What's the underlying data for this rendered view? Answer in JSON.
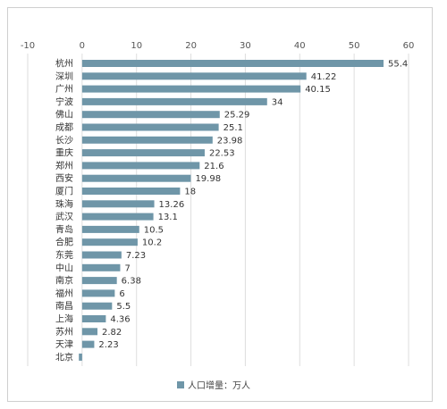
{
  "chart_data": {
    "type": "bar",
    "orientation": "horizontal",
    "title": "",
    "xlabel": "",
    "ylabel": "",
    "xlim": [
      -10,
      60
    ],
    "x_ticks": [
      -10,
      0,
      10,
      20,
      30,
      40,
      50,
      60
    ],
    "x_tick_labels": [
      "-10",
      "0",
      "10",
      "20",
      "30",
      "40",
      "50",
      "60"
    ],
    "axis_position": "top",
    "grid": true,
    "legend_position": "bottom",
    "color": "#6f96a8",
    "categories": [
      "杭州",
      "深圳",
      "广州",
      "宁波",
      "佛山",
      "成都",
      "长沙",
      "重庆",
      "郑州",
      "西安",
      "厦门",
      "珠海",
      "武汉",
      "青岛",
      "合肥",
      "东莞",
      "中山",
      "南京",
      "福州",
      "南昌",
      "上海",
      "苏州",
      "天津",
      "北京"
    ],
    "series": [
      {
        "name": "人口增量：万人",
        "values": [
          55.4,
          41.22,
          40.15,
          34,
          25.29,
          25.1,
          23.98,
          22.53,
          21.6,
          19.98,
          18,
          13.26,
          13.1,
          10.5,
          10.2,
          7.23,
          7,
          6.38,
          6,
          5.5,
          4.36,
          2.82,
          2.23,
          -0.6
        ],
        "value_labels": [
          "55.4",
          "41.22",
          "40.15",
          "34",
          "25.29",
          "25.1",
          "23.98",
          "22.53",
          "21.6",
          "19.98",
          "18",
          "13.26",
          "13.1",
          "10.5",
          "10.2",
          "7.23",
          "7",
          "6.38",
          "6",
          "5.5",
          "4.36",
          "2.82",
          "2.23",
          ""
        ]
      }
    ]
  }
}
